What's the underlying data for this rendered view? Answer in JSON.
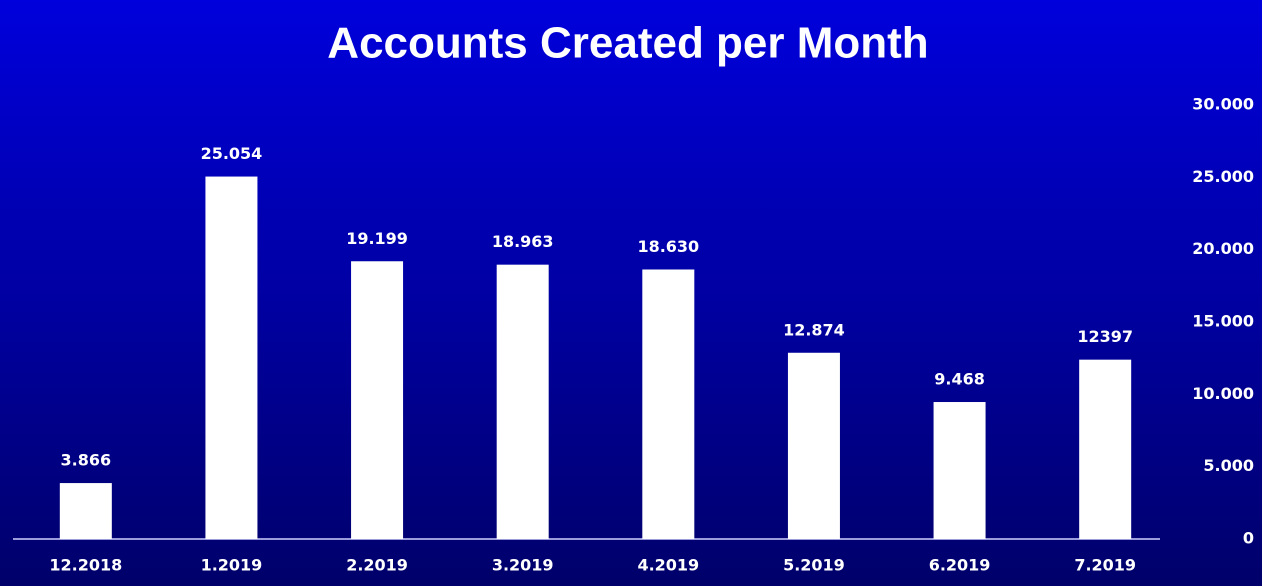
{
  "chart_data": {
    "type": "bar",
    "title": "Accounts Created per Month",
    "categories": [
      "12.2018",
      "1.2019",
      "2.2019",
      "3.2019",
      "4.2019",
      "5.2019",
      "6.2019",
      "7.2019"
    ],
    "values": [
      3866,
      25054,
      19199,
      18963,
      18630,
      12874,
      9468,
      12397
    ],
    "value_labels": [
      "3.866",
      "25.054",
      "19.199",
      "18.963",
      "18.630",
      "12.874",
      "9.468",
      "12397"
    ],
    "color": "#ffffff",
    "ylim": [
      0,
      30000
    ],
    "yticks": [
      0,
      {
        "value": 5000,
        "label": "5.000"
      },
      {
        "value": 10000,
        "label": "10.000"
      },
      {
        "value": 15000,
        "label": "15.000"
      },
      {
        "value": 20000,
        "label": "20.000"
      },
      {
        "value": 25000,
        "label": "25.000"
      },
      {
        "value": 30000,
        "label": "30.000"
      }
    ],
    "y_axis_side": "right",
    "grid": false
  }
}
